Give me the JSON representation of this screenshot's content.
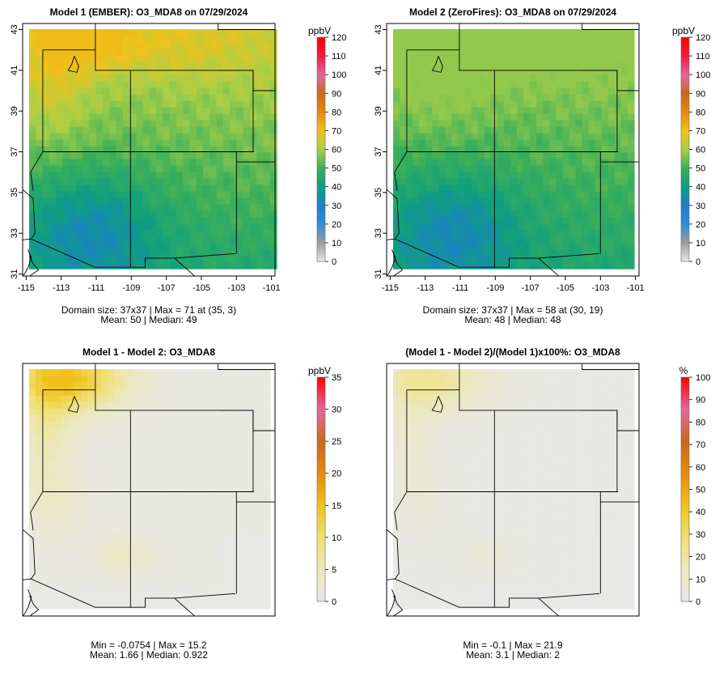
{
  "chart_data": [
    {
      "type": "heatmap",
      "title": "Model 1 (EMBER): O3_MDA8 on 07/29/2024",
      "x_ticks": [
        "-115",
        "-113",
        "-111",
        "-109",
        "-107",
        "-105",
        "-103",
        "-101"
      ],
      "y_ticks": [
        "31",
        "33",
        "35",
        "37",
        "39",
        "41",
        "43"
      ],
      "xlim": [
        -115.2,
        -100.8
      ],
      "ylim": [
        30.9,
        43.3
      ],
      "colorbar": {
        "unit": "ppbV",
        "ticks": [
          "0",
          "10",
          "20",
          "30",
          "40",
          "50",
          "60",
          "70",
          "80",
          "90",
          "100",
          "110",
          "120"
        ],
        "range": [
          0,
          120
        ]
      },
      "footer": [
        "Domain size: 37x37 | Max = 71 at (35, 3)",
        "Mean: 50 |  Median: 49"
      ]
    },
    {
      "type": "heatmap",
      "title": "Model 2 (ZeroFires): O3_MDA8 on 07/29/2024",
      "x_ticks": [
        "-115",
        "-113",
        "-111",
        "-109",
        "-107",
        "-105",
        "-103",
        "-101"
      ],
      "y_ticks": [
        "31",
        "33",
        "35",
        "37",
        "39",
        "41",
        "43"
      ],
      "xlim": [
        -115.2,
        -100.8
      ],
      "ylim": [
        30.9,
        43.3
      ],
      "colorbar": {
        "unit": "ppbV",
        "ticks": [
          "0",
          "10",
          "20",
          "30",
          "40",
          "50",
          "60",
          "70",
          "80",
          "90",
          "100",
          "110",
          "120"
        ],
        "range": [
          0,
          120
        ]
      },
      "footer": [
        "Domain size: 37x37 | Max = 58 at (30, 19)",
        "Mean: 48 |  Median: 48"
      ]
    },
    {
      "type": "heatmap",
      "title": "Model 1 - Model 2: O3_MDA8",
      "xlim": [
        -115.2,
        -100.8
      ],
      "ylim": [
        30.9,
        43.3
      ],
      "colorbar": {
        "unit": "ppbV",
        "ticks": [
          "0",
          "5",
          "10",
          "15",
          "20",
          "25",
          "30",
          "35"
        ],
        "range": [
          0,
          35
        ]
      },
      "footer": [
        "Min = -0.0754 | Max = 15.2",
        "Mean: 1.66 |  Median: 0.922"
      ]
    },
    {
      "type": "heatmap",
      "title": "(Model 1 - Model 2)/(Model 1)x100%: O3_MDA8",
      "xlim": [
        -115.2,
        -100.8
      ],
      "ylim": [
        30.9,
        43.3
      ],
      "colorbar": {
        "unit": "%",
        "ticks": [
          "0",
          "10",
          "20",
          "30",
          "40",
          "50",
          "60",
          "70",
          "80",
          "90",
          "100"
        ],
        "range": [
          0,
          100
        ]
      },
      "footer": [
        "Min = -0.1 | Max = 21.9",
        "Mean: 3.1 |  Median: 2"
      ]
    }
  ],
  "colors": {
    "abs_scale": [
      "#e8e8e8",
      "#9e9e9e",
      "#2f8fd8",
      "#1a80c8",
      "#0f9e80",
      "#3aaf5a",
      "#a8cf48",
      "#f1c21b",
      "#e88a10",
      "#c86a1a",
      "#e06aa0",
      "#f21a40",
      "#ff0000"
    ],
    "diff_scale": [
      "#e8e8e8",
      "#ece8c0",
      "#f0e070",
      "#f1c21b",
      "#e88a10",
      "#c86a1a",
      "#e06aa0",
      "#ff0000"
    ]
  }
}
